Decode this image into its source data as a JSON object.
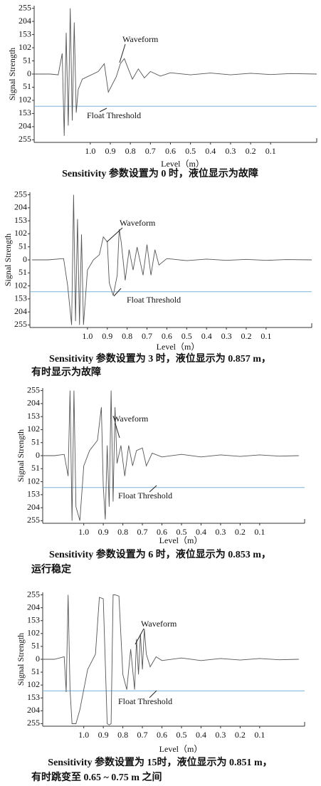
{
  "chart_data": [
    {
      "type": "line",
      "x_label": "Level（m）",
      "y_label": "Signal Strength",
      "color": "#555555",
      "threshold_color": "#7fb2d9",
      "annotations": [
        "Waveform",
        "Float Threshold"
      ],
      "threshold": -125,
      "caption": [
        "Sensitivity 参数设置为 0 时，液位显示为故障"
      ],
      "xlim": [
        1.28,
        -0.13
      ],
      "ylim": [
        -265,
        265
      ],
      "xticks": [
        {
          "value": 1,
          "label": "1.0"
        },
        0.9,
        0.8,
        0.7,
        0.6,
        0.5,
        0.4,
        0.3,
        0.2,
        0.1
      ],
      "yticks": [
        {
          "value": 255,
          "label": "255"
        },
        204,
        153,
        102,
        51,
        0,
        {
          "value": -51,
          "label": "51"
        },
        {
          "value": -102,
          "label": "102"
        },
        {
          "value": -153,
          "label": "153"
        },
        {
          "value": -204,
          "label": "204"
        },
        {
          "value": -255,
          "label": "255"
        }
      ],
      "x": [
        1.28,
        1.2,
        1.16,
        1.14,
        1.13,
        1.12,
        1.11,
        1.1,
        1.09,
        1.08,
        1.07,
        1.06,
        1.04,
        1.0,
        0.96,
        0.93,
        0.91,
        0.89,
        0.87,
        0.85,
        0.83,
        0.81,
        0.79,
        0.76,
        0.73,
        0.7,
        0.65,
        0.6,
        0.5,
        0.4,
        0.3,
        0.2,
        0.1,
        0.0,
        -0.13
      ],
      "values": [
        0,
        0,
        -3,
        80,
        -240,
        160,
        -200,
        255,
        -180,
        200,
        -150,
        -60,
        -20,
        -5,
        10,
        40,
        -70,
        -40,
        -10,
        40,
        60,
        20,
        -20,
        20,
        -15,
        10,
        -8,
        5,
        -3,
        4,
        -3,
        3,
        -2,
        2,
        0
      ]
    },
    {
      "type": "line",
      "x_label": "Level（m）",
      "y_label": "Signal Strength",
      "color": "#555555",
      "threshold_color": "#7fb2d9",
      "annotations": [
        "Waveform",
        "Float Threshold"
      ],
      "threshold": -125,
      "caption": [
        "Sensitivity 参数设置为  3 时，液位显示为  0.857 m，",
        "有时显示为故障"
      ],
      "xlim": [
        1.29,
        -0.13
      ],
      "ylim": [
        -265,
        265
      ],
      "xticks": [
        {
          "value": 1,
          "label": "1.0"
        },
        0.9,
        0.8,
        0.7,
        0.6,
        0.5,
        0.4,
        0.3,
        0.2,
        0.1
      ],
      "yticks": [
        {
          "value": 255,
          "label": "255"
        },
        204,
        153,
        102,
        51,
        0,
        {
          "value": -51,
          "label": "51"
        },
        {
          "value": -102,
          "label": "102"
        },
        {
          "value": -153,
          "label": "153"
        },
        {
          "value": -204,
          "label": "204"
        },
        {
          "value": -255,
          "label": "255"
        }
      ],
      "x": [
        1.28,
        1.2,
        1.12,
        1.1,
        1.08,
        1.07,
        1.06,
        1.05,
        1.04,
        1.03,
        1.02,
        1.0,
        0.97,
        0.94,
        0.92,
        0.9,
        0.89,
        0.87,
        0.85,
        0.84,
        0.83,
        0.81,
        0.79,
        0.77,
        0.75,
        0.72,
        0.7,
        0.68,
        0.66,
        0.64,
        0.6,
        0.5,
        0.4,
        0.3,
        0.2,
        0.1,
        0,
        -0.13
      ],
      "values": [
        0,
        0,
        5,
        -100,
        -255,
        255,
        -240,
        160,
        -255,
        100,
        -255,
        -40,
        0,
        20,
        90,
        70,
        -90,
        -140,
        -60,
        120,
        70,
        -80,
        40,
        -40,
        50,
        -60,
        60,
        -60,
        40,
        -20,
        5,
        -3,
        3,
        -2,
        2,
        -2,
        1,
        0
      ]
    },
    {
      "type": "line",
      "x_label": "Level（m）",
      "y_label": "Signal Strength",
      "color": "#555555",
      "threshold_color": "#7fb2d9",
      "annotations": [
        "Waveform",
        "Float Threshold"
      ],
      "threshold": -125,
      "caption": [
        "Sensitivity 参数设置为  6 时，液位显示为  0.853 m，",
        "运行稳定"
      ],
      "xlim": [
        1.21,
        -0.13
      ],
      "ylim": [
        -265,
        265
      ],
      "xticks": [
        {
          "value": 1,
          "label": "1.0"
        },
        0.9,
        0.8,
        0.7,
        0.6,
        0.5,
        0.4,
        0.3,
        0.2,
        0.1
      ],
      "yticks": [
        {
          "value": 255,
          "label": "255"
        },
        204,
        153,
        102,
        51,
        0,
        {
          "value": -51,
          "label": "51"
        },
        {
          "value": -102,
          "label": "102"
        },
        {
          "value": -153,
          "label": "153"
        },
        {
          "value": -204,
          "label": "204"
        },
        {
          "value": -255,
          "label": "255"
        }
      ],
      "x": [
        1.21,
        1.15,
        1.1,
        1.08,
        1.07,
        1.06,
        1.05,
        1.04,
        1.02,
        1.0,
        0.97,
        0.93,
        0.91,
        0.9,
        0.89,
        0.88,
        0.87,
        0.86,
        0.85,
        0.84,
        0.83,
        0.81,
        0.79,
        0.77,
        0.75,
        0.73,
        0.7,
        0.68,
        0.65,
        0.6,
        0.5,
        0.4,
        0.3,
        0.2,
        0.1,
        0,
        -0.1
      ],
      "values": [
        0,
        0,
        5,
        -80,
        255,
        -255,
        255,
        -200,
        -255,
        -40,
        20,
        60,
        190,
        -120,
        -250,
        40,
        -200,
        255,
        -180,
        190,
        -30,
        40,
        -80,
        40,
        -40,
        20,
        30,
        -40,
        10,
        -5,
        5,
        -5,
        3,
        -3,
        3,
        -2,
        0
      ]
    },
    {
      "type": "line",
      "x_label": "Level（m）",
      "y_label": "Signal Strength",
      "color": "#555555",
      "threshold_color": "#7fb2d9",
      "annotations": [
        "Waveform",
        "Float Threshold"
      ],
      "threshold": -125,
      "caption": [
        "Sensitivity 参数设置为  15时，液位显示为  0.851 m，",
        "有时跳变至 0.65 ~ 0.75 m 之间"
      ],
      "xlim": [
        1.21,
        -0.13
      ],
      "ylim": [
        -265,
        265
      ],
      "xticks": [
        {
          "value": 1,
          "label": "1.0"
        },
        0.9,
        0.8,
        0.7,
        0.6,
        0.5,
        0.4,
        0.3,
        0.2,
        0.1
      ],
      "yticks": [
        {
          "value": 255,
          "label": "255"
        },
        204,
        153,
        102,
        51,
        0,
        {
          "value": -51,
          "label": "51"
        },
        {
          "value": -102,
          "label": "102"
        },
        {
          "value": -153,
          "label": "153"
        },
        {
          "value": -204,
          "label": "204"
        },
        {
          "value": -255,
          "label": "255"
        }
      ],
      "x": [
        1.21,
        1.15,
        1.1,
        1.09,
        1.08,
        1.07,
        1.06,
        1.04,
        1.02,
        0.98,
        0.94,
        0.92,
        0.9,
        0.88,
        0.87,
        0.86,
        0.85,
        0.84,
        0.82,
        0.8,
        0.78,
        0.76,
        0.74,
        0.73,
        0.72,
        0.71,
        0.7,
        0.69,
        0.68,
        0.66,
        0.63,
        0.6,
        0.5,
        0.4,
        0.3,
        0.2,
        0.1,
        0,
        -0.1
      ],
      "values": [
        0,
        0,
        10,
        -130,
        255,
        -120,
        -255,
        -255,
        -200,
        -40,
        20,
        245,
        240,
        -255,
        -260,
        -255,
        255,
        255,
        250,
        -60,
        -120,
        40,
        -120,
        80,
        -60,
        100,
        -40,
        120,
        20,
        -30,
        10,
        -5,
        5,
        -5,
        3,
        -3,
        3,
        -2,
        0
      ]
    }
  ]
}
